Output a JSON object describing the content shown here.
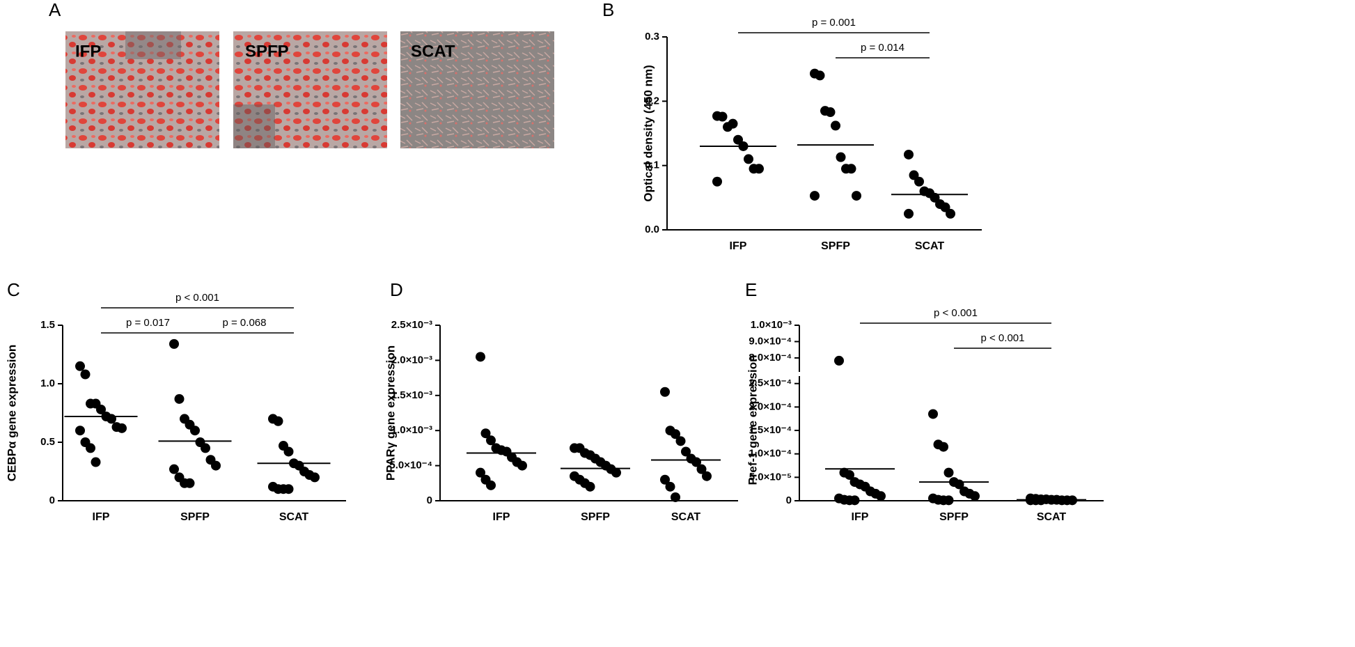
{
  "figure_a": {
    "label": "A",
    "images": [
      "IFP",
      "SPFP",
      "SCAT"
    ]
  },
  "chart_data": [
    {
      "type": "dotplot",
      "panel_label": "B",
      "ylabel": "Optical density (450 nm)",
      "categories": [
        "IFP",
        "SPFP",
        "SCAT"
      ],
      "values": [
        [
          0.177,
          0.176,
          0.16,
          0.165,
          0.14,
          0.13,
          0.11,
          0.095,
          0.095,
          0.075
        ],
        [
          0.243,
          0.24,
          0.185,
          0.183,
          0.162,
          0.113,
          0.095,
          0.095,
          0.053,
          0.053
        ],
        [
          0.117,
          0.085,
          0.075,
          0.06,
          0.057,
          0.05,
          0.04,
          0.035,
          0.025,
          0.025
        ]
      ],
      "center_lines": [
        0.13,
        0.132,
        0.055
      ],
      "color": "#000000",
      "ylim": [
        0,
        0.3
      ],
      "yticks": [
        {
          "value": 0,
          "label": "0.0"
        },
        0.1,
        0.2,
        0.3
      ],
      "comparisons": [
        {
          "from": 0,
          "to": 2,
          "label": "p = 0.001"
        },
        {
          "from": 1,
          "to": 2,
          "label": "p = 0.014"
        }
      ]
    },
    {
      "type": "dotplot",
      "panel_label": "C",
      "ylabel": "CEBPα gene expression",
      "categories": [
        "IFP",
        "SPFP",
        "SCAT"
      ],
      "values": [
        [
          1.15,
          1.08,
          0.83,
          0.83,
          0.78,
          0.72,
          0.7,
          0.63,
          0.62,
          0.6,
          0.5,
          0.45,
          0.33
        ],
        [
          1.34,
          0.87,
          0.7,
          0.65,
          0.6,
          0.5,
          0.45,
          0.35,
          0.3,
          0.27,
          0.2,
          0.15,
          0.15
        ],
        [
          0.7,
          0.68,
          0.47,
          0.42,
          0.32,
          0.3,
          0.25,
          0.22,
          0.2,
          0.12,
          0.1,
          0.1,
          0.1
        ]
      ],
      "center_lines": [
        0.72,
        0.51,
        0.32
      ],
      "color": "#000000",
      "ylim": [
        0,
        1.5
      ],
      "yticks": [
        0,
        0.5,
        {
          "value": 1,
          "label": "1.0"
        },
        1.5
      ],
      "comparisons": [
        {
          "from": 0,
          "to": 2,
          "label": "p < 0.001"
        },
        {
          "from": 0,
          "to": 1,
          "label": "p = 0.017"
        },
        {
          "from": 1,
          "to": 2,
          "label": "p = 0.068"
        }
      ]
    },
    {
      "type": "dotplot",
      "panel_label": "D",
      "ylabel": "PPARγ gene expression",
      "categories": [
        "IFP",
        "SPFP",
        "SCAT"
      ],
      "values": [
        [
          0.00205,
          0.00096,
          0.00086,
          0.00075,
          0.00072,
          0.0007,
          0.00062,
          0.00055,
          0.0005,
          0.0004,
          0.0003,
          0.00022
        ],
        [
          0.00075,
          0.00075,
          0.00068,
          0.00065,
          0.0006,
          0.00055,
          0.0005,
          0.00045,
          0.0004,
          0.00035,
          0.0003,
          0.00025,
          0.0002
        ],
        [
          0.00155,
          0.001,
          0.00095,
          0.00085,
          0.0007,
          0.0006,
          0.00055,
          0.00045,
          0.00035,
          0.0003,
          0.0002,
          5e-05
        ]
      ],
      "center_lines": [
        0.00068,
        0.00046,
        0.00058
      ],
      "color": "#000000",
      "ylim": [
        0,
        0.0025
      ],
      "yticks": [
        0,
        {
          "value": 0.0005,
          "label": "5.0×10⁻⁴"
        },
        {
          "value": 0.001,
          "label": "1.0×10⁻³"
        },
        {
          "value": 0.0015,
          "label": "1.5×10⁻³"
        },
        {
          "value": 0.002,
          "label": "2.0×10⁻³"
        },
        {
          "value": 0.0025,
          "label": "2.5×10⁻³"
        }
      ],
      "comparisons": []
    },
    {
      "type": "dotplot",
      "panel_label": "E",
      "ylabel": "Pref-1 gene expression",
      "categories": [
        "IFP",
        "SPFP",
        "SCAT"
      ],
      "values": [
        [
          0.000783,
          6e-05,
          5.5e-05,
          4e-05,
          3.5e-05,
          3e-05,
          2e-05,
          1.5e-05,
          1e-05,
          5e-06,
          2e-06,
          1e-06,
          1e-06
        ],
        [
          0.000185,
          0.00012,
          0.000115,
          6e-05,
          4e-05,
          3.5e-05,
          2e-05,
          1.5e-05,
          1e-05,
          5e-06,
          2e-06,
          1e-06,
          1e-06
        ],
        [
          5e-06,
          4e-06,
          3e-06,
          3e-06,
          2e-06,
          2e-06,
          1e-06,
          1e-06,
          1e-06,
          1e-06,
          1e-06,
          1e-06
        ]
      ],
      "center_lines": [
        6.8e-05,
        4e-05,
        2e-06
      ],
      "color": "#000000",
      "ylim": [
        0,
        0.00026
      ],
      "ylim_upper": [
        0.00074,
        0.001
      ],
      "yticks": [
        0,
        {
          "value": 5e-05,
          "label": "5.0×10⁻⁵"
        },
        {
          "value": 0.0001,
          "label": "1.0×10⁻⁴"
        },
        {
          "value": 0.00015,
          "label": "1.5×10⁻⁴"
        },
        {
          "value": 0.0002,
          "label": "2.0×10⁻⁴"
        },
        {
          "value": 0.00025,
          "label": "2.5×10⁻⁴"
        },
        {
          "value": 0.0008,
          "label": "8.0×10⁻⁴"
        },
        {
          "value": 0.0009,
          "label": "9.0×10⁻⁴"
        },
        {
          "value": 0.001,
          "label": "1.0×10⁻³"
        }
      ],
      "comparisons": [
        {
          "from": 0,
          "to": 2,
          "label": "p < 0.001"
        },
        {
          "from": 1,
          "to": 2,
          "label": "p < 0.001"
        }
      ]
    }
  ]
}
